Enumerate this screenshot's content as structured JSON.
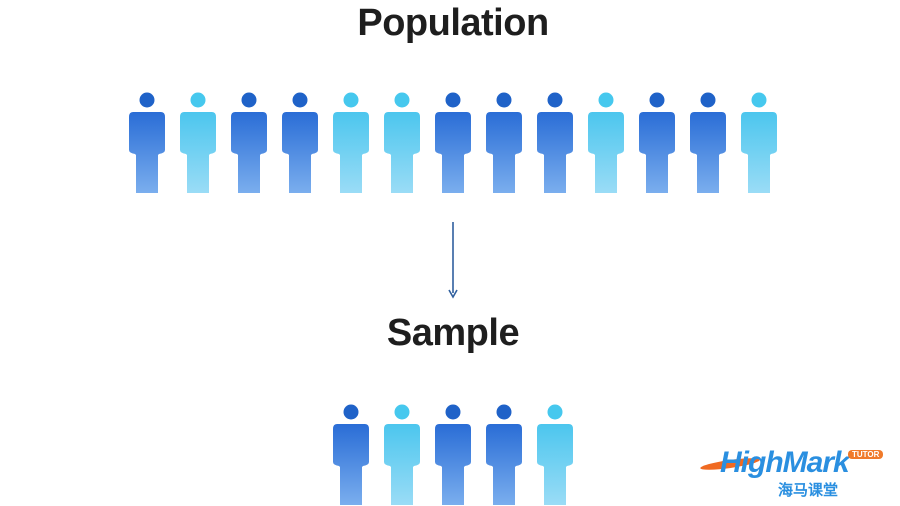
{
  "population": {
    "title": "Population",
    "figures": [
      "dark",
      "light",
      "dark",
      "dark",
      "light",
      "light",
      "dark",
      "dark",
      "dark",
      "light",
      "dark",
      "dark",
      "light"
    ]
  },
  "sample": {
    "title": "Sample",
    "figures": [
      "dark",
      "light",
      "dark",
      "dark",
      "light"
    ]
  },
  "colors": {
    "dark_top": "#2a6dd6",
    "dark_bottom": "#7aaeee",
    "dark_head": "#1f62c8",
    "light_top": "#4cc6ee",
    "light_bottom": "#9adcf6",
    "light_head": "#46c8ee",
    "arrow": "#2f5f9e",
    "title": "#1e1e1e"
  },
  "logo": {
    "text": "HighMark",
    "badge": "TUTOR",
    "chinese": "海马课堂"
  }
}
